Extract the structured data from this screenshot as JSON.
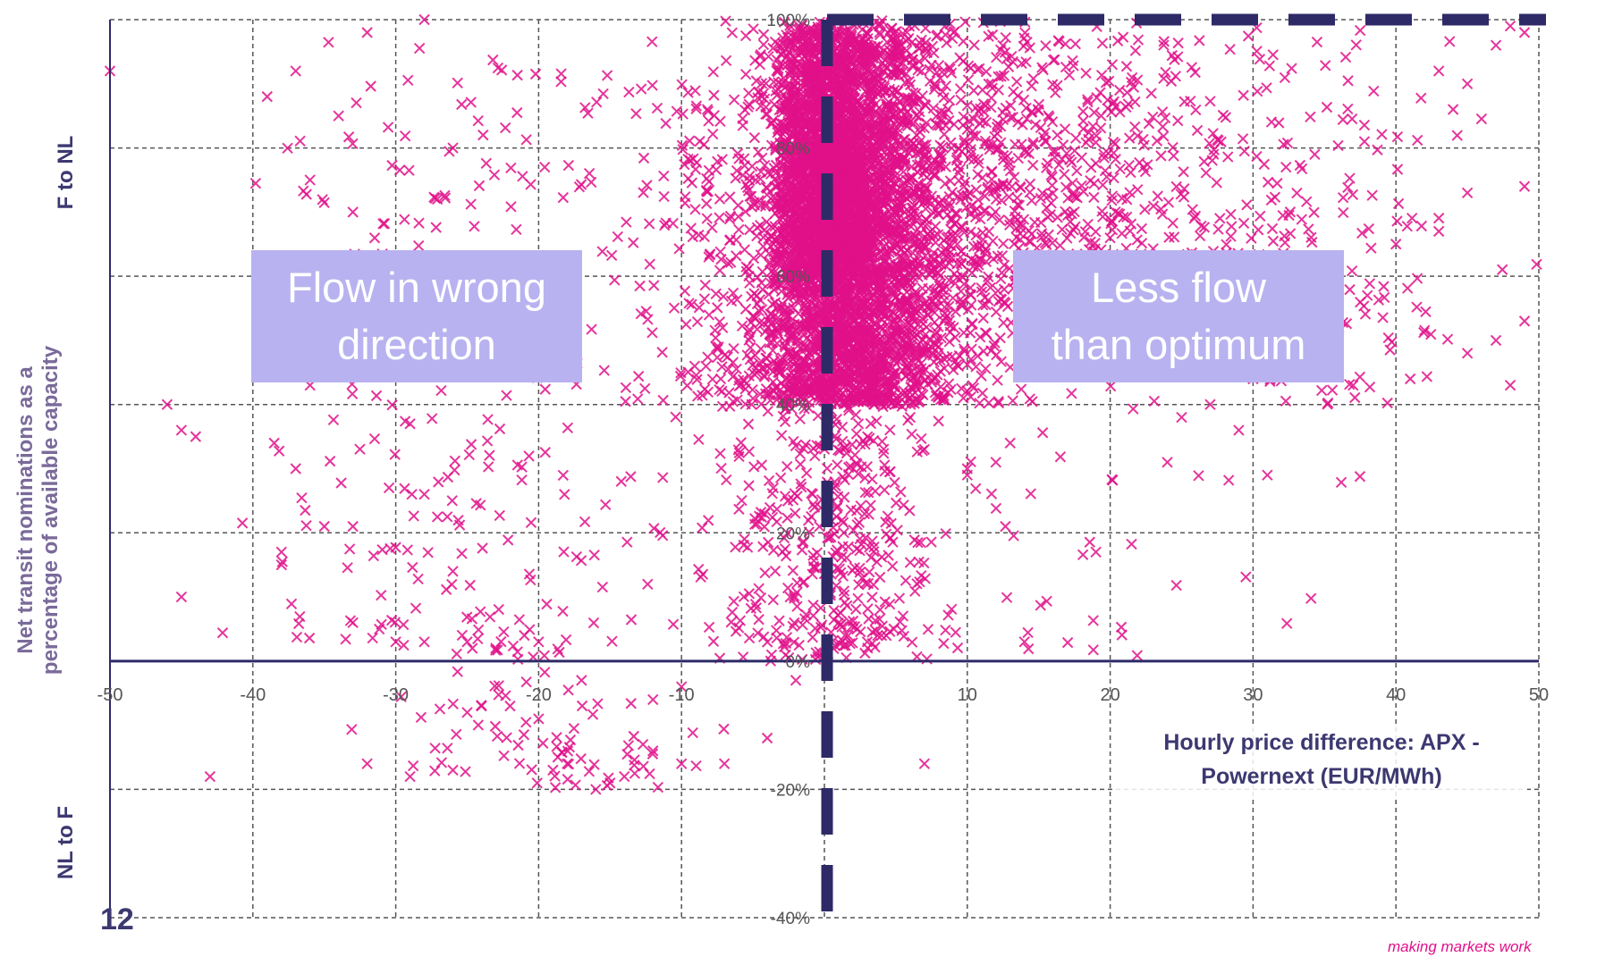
{
  "page": {
    "number": "12",
    "tagline": "making markets work"
  },
  "annotations": {
    "left_box": [
      "Flow in wrong",
      "direction"
    ],
    "right_box": [
      "Less flow",
      "than optimum"
    ]
  },
  "axis_text": {
    "y_title": [
      "Net transit nominations as a",
      "percentage of available capacity"
    ],
    "y_upper": "F to NL",
    "y_lower": "NL to F",
    "x_title": [
      "Hourly price difference: APX -",
      "Powernext (EUR/MWh)"
    ]
  },
  "colors": {
    "marker": "#e0108a",
    "axis": "#2e2a68",
    "grid": "#555555",
    "box": "#b8b2f0"
  },
  "chart_data": {
    "type": "scatter",
    "marker": "x",
    "xlim": [
      -50,
      50
    ],
    "ylim": [
      -40,
      100
    ],
    "x_ticks": [
      -50,
      -40,
      -30,
      -20,
      -10,
      0,
      10,
      20,
      30,
      40,
      50
    ],
    "x_tick_labels": [
      "-50",
      "-40",
      "-30",
      "-20",
      "-10",
      "",
      "10",
      "20",
      "30",
      "40",
      "50"
    ],
    "y_ticks": [
      -40,
      -20,
      0,
      20,
      40,
      60,
      80,
      100
    ],
    "y_tick_labels": [
      "-40%",
      "-20%",
      "0%",
      "20%",
      "40%",
      "60%",
      "80%",
      "100%"
    ],
    "grid": true,
    "reference_lines": [
      {
        "orientation": "vertical",
        "x": 0,
        "style": "thick-dashed"
      },
      {
        "orientation": "horizontal",
        "y": 100,
        "x_from": 0,
        "x_to": 50,
        "style": "thick-dashed"
      }
    ],
    "clusters": [
      {
        "x_center": 2,
        "x_spread": 5,
        "y_from": 40,
        "y_to": 100,
        "count": 2600
      },
      {
        "x_center": 2,
        "x_spread": 12,
        "y_from": 40,
        "y_to": 100,
        "count": 1300
      },
      {
        "x_center": 15,
        "x_spread": 14,
        "y_from": 55,
        "y_to": 100,
        "count": 700
      },
      {
        "x_center": 0,
        "x_spread": 7,
        "y_from": 0,
        "y_to": 45,
        "count": 420
      },
      {
        "x_center": 35,
        "x_spread": 10,
        "y_from": 40,
        "y_to": 100,
        "count": 160
      },
      {
        "x_center": -25,
        "x_spread": 13,
        "y_from": 0,
        "y_to": 100,
        "count": 260
      },
      {
        "x_center": -18,
        "x_spread": 9,
        "y_from": -20,
        "y_to": 0,
        "count": 70
      },
      {
        "x_center": 20,
        "x_spread": 15,
        "y_from": 0,
        "y_to": 40,
        "count": 40
      },
      {
        "x_center": 0,
        "x_spread": 3,
        "y_from": 60,
        "y_to": 100,
        "count": 1600
      }
    ],
    "points": [
      [
        -50,
        92
      ],
      [
        -46,
        40
      ],
      [
        -45,
        36
      ],
      [
        -44,
        35
      ],
      [
        -45,
        10
      ],
      [
        -43,
        -18
      ],
      [
        -39,
        88
      ],
      [
        -37,
        92
      ],
      [
        -36,
        75
      ],
      [
        -36,
        43
      ],
      [
        -37,
        30
      ],
      [
        -38,
        17
      ],
      [
        -38,
        15
      ],
      [
        -33,
        70
      ],
      [
        -32,
        63
      ],
      [
        -31,
        54
      ],
      [
        -30,
        48
      ],
      [
        -29,
        37
      ],
      [
        -28,
        26
      ],
      [
        -26,
        14
      ],
      [
        -32,
        -16
      ],
      [
        -29,
        -18
      ],
      [
        -26,
        -17
      ],
      [
        -25,
        -8
      ],
      [
        -24,
        -7
      ],
      [
        -22,
        -7
      ],
      [
        -19,
        -17
      ],
      [
        -18,
        -16
      ],
      [
        -16,
        -20
      ],
      [
        -15,
        -19
      ],
      [
        -14,
        -18
      ],
      [
        -12,
        -14
      ],
      [
        -10,
        -16
      ],
      [
        -7,
        -16
      ],
      [
        -28,
        100
      ],
      [
        -32,
        98
      ],
      [
        -34,
        85
      ],
      [
        -26,
        80
      ],
      [
        -30,
        52
      ],
      [
        -33,
        21
      ],
      [
        -33,
        6
      ],
      [
        -35,
        21
      ],
      [
        -30,
        3
      ],
      [
        -28,
        3
      ],
      [
        -25,
        3
      ],
      [
        -23,
        2
      ],
      [
        -21,
        4
      ],
      [
        -20,
        3
      ],
      [
        46,
        100
      ],
      [
        48,
        99
      ],
      [
        49,
        98
      ],
      [
        47,
        96
      ],
      [
        43,
        92
      ],
      [
        45,
        90
      ],
      [
        44,
        86
      ],
      [
        49,
        74
      ],
      [
        45,
        73
      ],
      [
        43,
        67
      ],
      [
        40,
        65
      ],
      [
        49,
        53
      ],
      [
        47,
        50
      ],
      [
        45,
        48
      ],
      [
        41,
        44
      ],
      [
        37,
        43
      ],
      [
        30,
        44
      ],
      [
        32,
        45
      ],
      [
        27,
        40
      ],
      [
        25,
        38
      ],
      [
        29,
        36
      ],
      [
        31,
        29
      ],
      [
        24,
        31
      ],
      [
        19,
        17
      ],
      [
        14,
        3
      ],
      [
        12,
        31
      ],
      [
        13,
        34
      ],
      [
        10,
        30
      ],
      [
        10,
        29
      ],
      [
        7,
        33
      ],
      [
        6,
        38
      ],
      [
        3,
        3
      ],
      [
        4,
        4
      ],
      [
        7,
        -16
      ],
      [
        -4,
        -12
      ],
      [
        -2,
        -3
      ],
      [
        -10,
        -4
      ],
      [
        -12,
        -6
      ],
      [
        -17,
        -3
      ],
      [
        -20,
        -9
      ],
      [
        48,
        43
      ],
      [
        36,
        52
      ],
      [
        38,
        57
      ]
    ]
  }
}
